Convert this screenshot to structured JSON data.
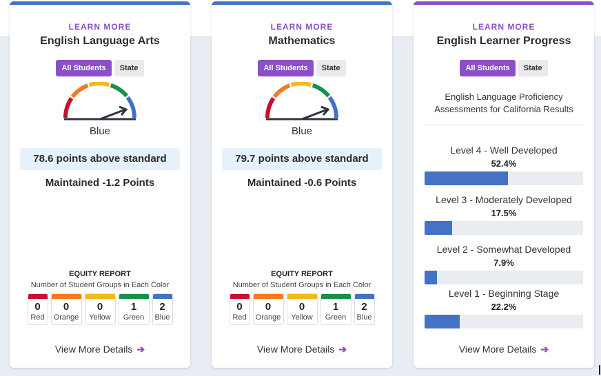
{
  "colors": {
    "blue_accent": "#4472c4",
    "purple_accent": "#8b4fc6",
    "red": "#c8102e",
    "orange": "#f47b20",
    "yellow": "#f2b91c",
    "green": "#159148",
    "blue": "#4472c4"
  },
  "cards": [
    {
      "learn_more": "LEARN MORE",
      "title": "English Language Arts",
      "toggle_all": "All Students",
      "toggle_state": "State",
      "gauge_label": "Blue",
      "points": "78.6 points above standard",
      "maintained": "Maintained -1.2 Points",
      "equity_title": "EQUITY REPORT",
      "equity_subtitle": "Number of Student Groups in Each Color",
      "equity": [
        {
          "count": "0",
          "label": "Red"
        },
        {
          "count": "0",
          "label": "Orange"
        },
        {
          "count": "0",
          "label": "Yellow"
        },
        {
          "count": "1",
          "label": "Green"
        },
        {
          "count": "2",
          "label": "Blue"
        }
      ],
      "details": "View More Details"
    },
    {
      "learn_more": "LEARN MORE",
      "title": "Mathematics",
      "toggle_all": "All Students",
      "toggle_state": "State",
      "gauge_label": "Blue",
      "points": "79.7 points above standard",
      "maintained": "Maintained -0.6 Points",
      "equity_title": "EQUITY REPORT",
      "equity_subtitle": "Number of Student Groups in Each Color",
      "equity": [
        {
          "count": "0",
          "label": "Red"
        },
        {
          "count": "0",
          "label": "Orange"
        },
        {
          "count": "0",
          "label": "Yellow"
        },
        {
          "count": "1",
          "label": "Green"
        },
        {
          "count": "2",
          "label": "Blue"
        }
      ],
      "details": "View More Details"
    },
    {
      "learn_more": "LEARN MORE",
      "title": "English Learner Progress",
      "toggle_all": "All Students",
      "toggle_state": "State",
      "description": "English Language Proficiency Assessments for California Results",
      "levels": [
        {
          "name": "Level 4 - Well Developed",
          "percent": "52.4%",
          "value": 52.4
        },
        {
          "name": "Level 3 - Moderately Developed",
          "percent": "17.5%",
          "value": 17.5
        },
        {
          "name": "Level 2 - Somewhat Developed",
          "percent": "7.9%",
          "value": 7.9
        },
        {
          "name": "Level 1 - Beginning Stage",
          "percent": "22.2%",
          "value": 22.2
        }
      ],
      "details": "View More Details"
    }
  ]
}
